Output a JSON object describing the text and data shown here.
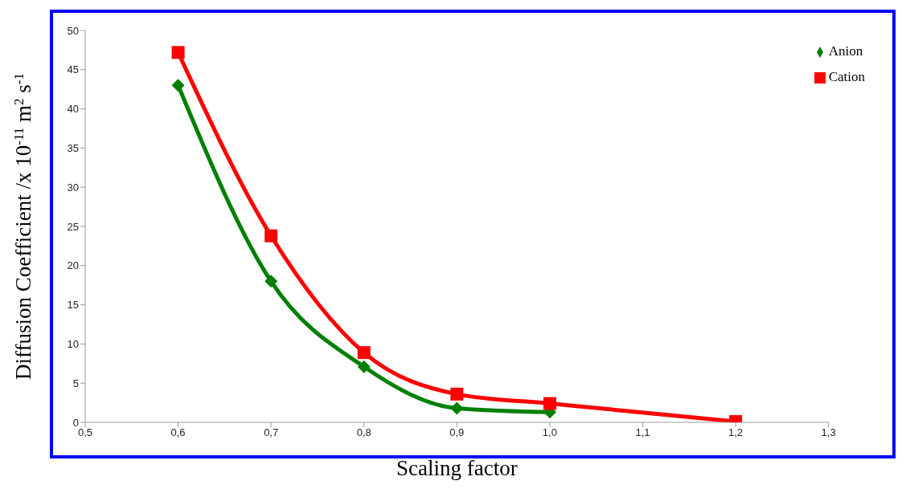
{
  "chart_data": {
    "type": "line",
    "xlabel": "Scaling factor",
    "ylabel": "Diffusion Coefficient /x 10$^{-11}$ m$^{2}$ s$^{-1}$",
    "x": [
      0.6,
      0.7,
      0.8,
      0.9,
      1.0,
      1.2
    ],
    "series": [
      {
        "name": "Anion",
        "color": "#008000",
        "marker": "diamond",
        "values": [
          43,
          18,
          7.1,
          1.8,
          1.3,
          null
        ]
      },
      {
        "name": "Cation",
        "color": "#ff0000",
        "marker": "square",
        "values": [
          47.2,
          23.8,
          8.9,
          3.6,
          2.4,
          0.1
        ]
      }
    ],
    "xlim": [
      0.5,
      1.3
    ],
    "xticks": [
      {
        "value": 0.5,
        "label": "0,5"
      },
      {
        "value": 0.6,
        "label": "0,6"
      },
      {
        "value": 0.7,
        "label": "0,7"
      },
      {
        "value": 0.8,
        "label": "0,8"
      },
      {
        "value": 0.9,
        "label": "0,9"
      },
      {
        "value": 1.0,
        "label": "1,0"
      },
      {
        "value": 1.1,
        "label": "1,1"
      },
      {
        "value": 1.2,
        "label": "1,2"
      },
      {
        "value": 1.3,
        "label": "1,3"
      }
    ],
    "ylim": [
      0,
      50
    ],
    "yticks": [
      0,
      5,
      10,
      15,
      20,
      25,
      30,
      35,
      40,
      45,
      50
    ],
    "grid": false,
    "legend": "top right",
    "line_style": "solid"
  }
}
